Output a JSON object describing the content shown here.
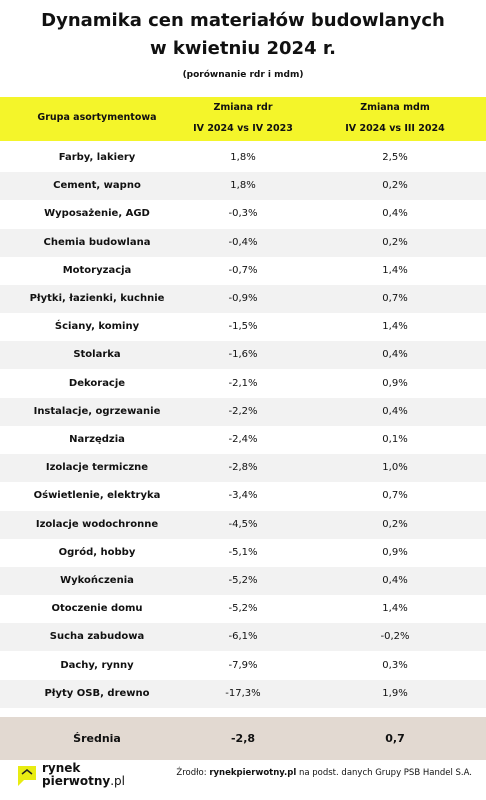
{
  "header": {
    "title": [
      "Dynamika cen materiałów budowlanych",
      "w kwietniu 2024 r."
    ],
    "subtitle": "(porównanie  rdr i mdm)"
  },
  "table": {
    "columns": [
      {
        "name": "Grupa asortymentowa"
      },
      {
        "name": "Zmiana rdr",
        "period": "IV 2024 vs IV 2023"
      },
      {
        "name": "Zmiana mdm",
        "period": "IV 2024  vs III 2024"
      }
    ],
    "rows": [
      [
        "Farby, lakiery",
        "1,8%",
        "2,5%"
      ],
      [
        "Cement, wapno",
        "1,8%",
        "0,2%"
      ],
      [
        "Wyposażenie, AGD",
        "-0,3%",
        "0,4%"
      ],
      [
        "Chemia budowlana",
        "-0,4%",
        "0,2%"
      ],
      [
        "Motoryzacja",
        "-0,7%",
        "1,4%"
      ],
      [
        "Płytki, łazienki, kuchnie",
        "-0,9%",
        "0,7%"
      ],
      [
        "Ściany, kominy",
        "-1,5%",
        "1,4%"
      ],
      [
        "Stolarka",
        "-1,6%",
        "0,4%"
      ],
      [
        "Dekoracje",
        "-2,1%",
        "0,9%"
      ],
      [
        "Instalacje, ogrzewanie",
        "-2,2%",
        "0,4%"
      ],
      [
        "Narzędzia",
        "-2,4%",
        "0,1%"
      ],
      [
        "Izolacje termiczne",
        "-2,8%",
        "1,0%"
      ],
      [
        "Oświetlenie, elektryka",
        "-3,4%",
        "0,7%"
      ],
      [
        "Izolacje wodochronne",
        "-4,5%",
        "0,2%"
      ],
      [
        "Ogród, hobby",
        "-5,1%",
        "0,9%"
      ],
      [
        "Wykończenia",
        "-5,2%",
        "0,4%"
      ],
      [
        "Otoczenie domu",
        "-5,2%",
        "1,4%"
      ],
      [
        "Sucha zabudowa",
        "-6,1%",
        "-0,2%"
      ],
      [
        "Dachy, rynny",
        "-7,9%",
        "0,3%"
      ],
      [
        "Płyty OSB, drewno",
        "-17,3%",
        "1,9%"
      ]
    ],
    "average": [
      "Średnia",
      "-2,8",
      "0,7"
    ]
  },
  "footer": {
    "source": [
      "Źrodło: ",
      "rynekpierwotny.pl",
      " na podst. danych Grupy PSB Handel S.A."
    ],
    "logo": [
      "rynek",
      "pierwotny",
      ".pl"
    ]
  }
}
